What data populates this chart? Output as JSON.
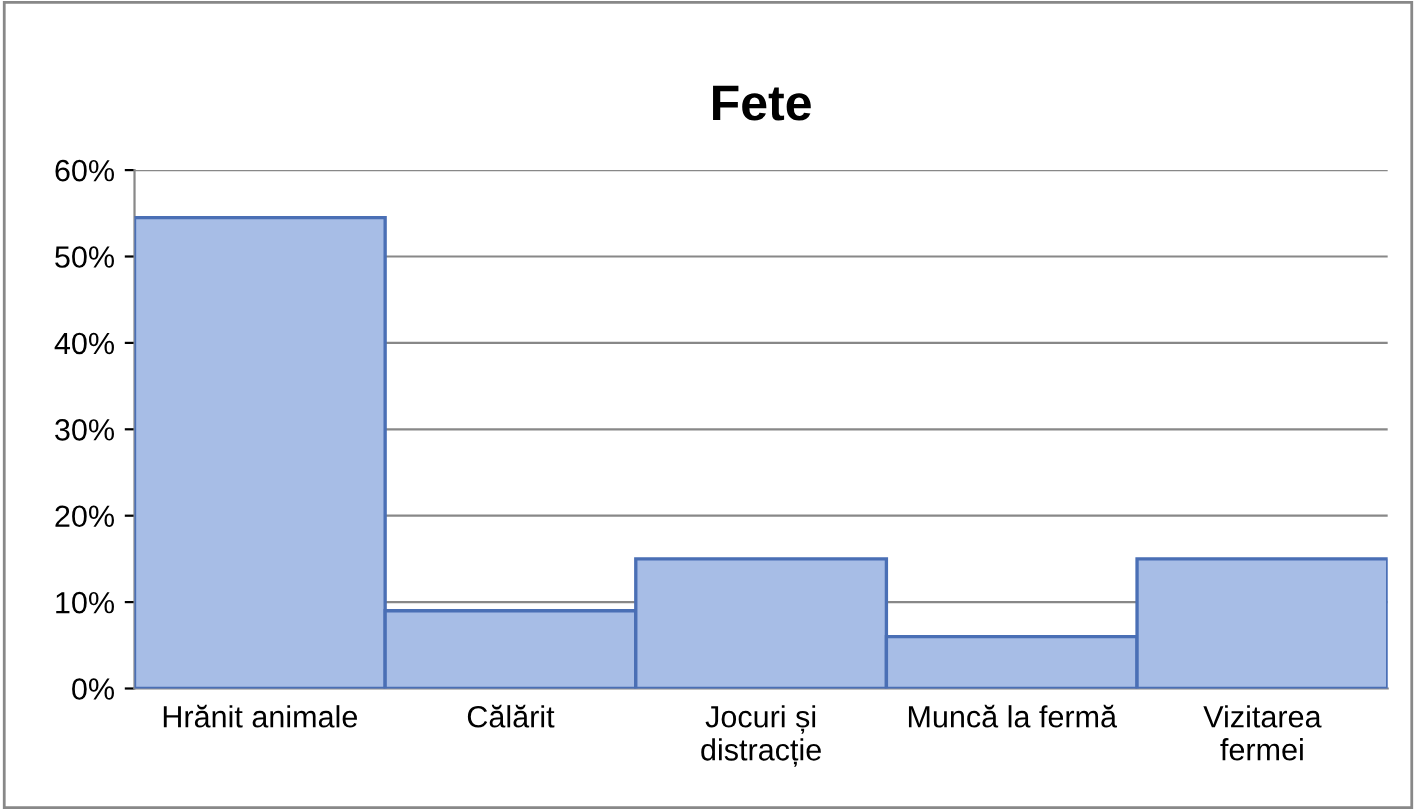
{
  "chart_data": {
    "type": "bar",
    "title": "Fete",
    "categories": [
      "Hrănit animale",
      "Călărit",
      "Jocuri și distracție",
      "Muncă la fermă",
      "Vizitarea fermei"
    ],
    "values": [
      54.5,
      9,
      15,
      6,
      15
    ],
    "color": "#a7bde6",
    "ylim": [
      0,
      60
    ],
    "yticks": [
      {
        "value": 0,
        "label": "0%"
      },
      {
        "value": 10,
        "label": "10%"
      },
      {
        "value": 20,
        "label": "20%"
      },
      {
        "value": 30,
        "label": "30%"
      },
      {
        "value": 40,
        "label": "40%"
      },
      {
        "value": 50,
        "label": "50%"
      },
      {
        "value": 60,
        "label": "60%"
      }
    ],
    "grid": "y"
  }
}
